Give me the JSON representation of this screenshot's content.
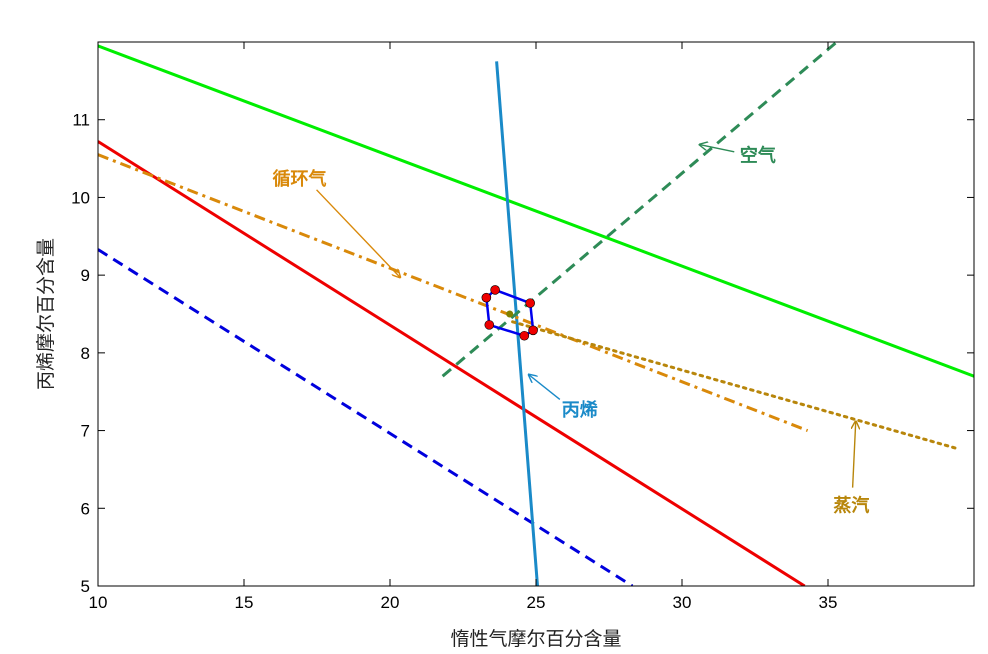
{
  "chart_data": {
    "type": "line",
    "title": "",
    "xlabel": "惰性气摩尔百分含量",
    "ylabel": "丙烯摩尔百分含量",
    "xlim": [
      10,
      40
    ],
    "ylim": [
      5,
      12
    ],
    "xticks": [
      10,
      15,
      20,
      25,
      30,
      35
    ],
    "yticks": [
      5,
      6,
      7,
      8,
      9,
      10,
      11
    ],
    "grid": false,
    "series": [
      {
        "color": "#00ee00",
        "style": "solid",
        "x": [
          10,
          40
        ],
        "y": [
          11.95,
          7.7
        ]
      },
      {
        "color": "#ee0000",
        "style": "solid",
        "x": [
          10,
          34.2
        ],
        "y": [
          10.72,
          5.0
        ]
      },
      {
        "color": "#0000dd",
        "style": "dashed",
        "x": [
          10,
          28.3
        ],
        "y": [
          9.33,
          5.0
        ]
      },
      {
        "color": "#1a8ac8",
        "style": "solid",
        "x": [
          23.65,
          25.05
        ],
        "y": [
          11.75,
          5.0
        ]
      },
      {
        "color": "#2e8b57",
        "style": "dashed",
        "x": [
          21.8,
          35.3
        ],
        "y": [
          7.7,
          12.0
        ]
      },
      {
        "color": "#d9890a",
        "style": "dashdot",
        "x": [
          10,
          34.3
        ],
        "y": [
          10.55,
          7.0
        ]
      },
      {
        "color": "#b8860b",
        "style": "dotted",
        "x": [
          24.2,
          39.5
        ],
        "y": [
          8.4,
          6.76
        ]
      }
    ],
    "feasible_region": {
      "color": "#0000ee",
      "marker_color": "#ee0000",
      "x": [
        23.3,
        23.6,
        24.8,
        24.9,
        24.6,
        23.4
      ],
      "y": [
        8.71,
        8.81,
        8.64,
        8.29,
        8.22,
        8.36
      ]
    },
    "center_point": {
      "x": 24.1,
      "y": 8.5,
      "color": "#808000"
    },
    "annotations": [
      {
        "label": "空气",
        "color": "#2e8b57",
        "text_x": 32.6,
        "text_y": 10.55,
        "arrow_to_x": 30.6,
        "arrow_to_y": 10.68
      },
      {
        "label": "循环气",
        "color": "#d9890a",
        "text_x": 16.9,
        "text_y": 10.25,
        "arrow_to_x": 20.35,
        "arrow_to_y": 8.97
      },
      {
        "label": "丙烯",
        "color": "#1a8ac8",
        "text_x": 26.5,
        "text_y": 7.28,
        "arrow_to_x": 24.75,
        "arrow_to_y": 7.72
      },
      {
        "label": "蒸汽",
        "color": "#b8860b",
        "text_x": 35.8,
        "text_y": 6.05,
        "arrow_to_x": 35.95,
        "arrow_to_y": 7.12
      }
    ]
  }
}
